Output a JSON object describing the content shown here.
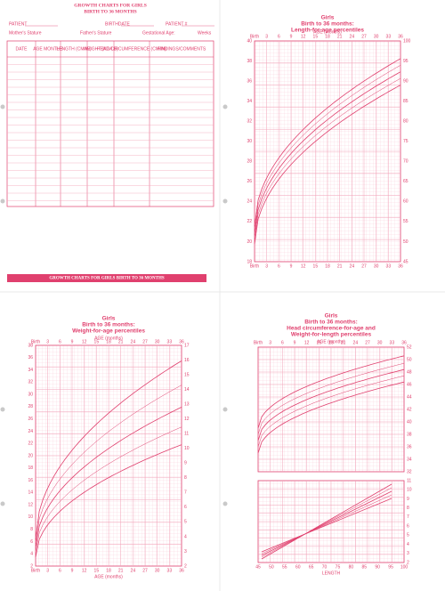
{
  "form": {
    "title": [
      "GROWTH CHARTS FOR GIRLS",
      "BIRTH TO 36 MONTHS"
    ],
    "fields_1": [
      "PATIENT",
      "BIRTHDATE",
      "PATIENT #"
    ],
    "fields_2": [
      "Mother's Stature",
      "Father's Stature",
      "Gestational Age:",
      "Weeks"
    ],
    "headers": [
      "DATE",
      "AGE MONTHS",
      "LENGTH (CM/IN)",
      "WEIGHT (KG/LB)",
      "HEAD CIRCUMFERENCE (CM/IN)",
      "FINDINGS/COMMENTS"
    ],
    "footer": "GROWTH CHARTS FOR GIRLS BIRTH TO 36 MONTHS"
  },
  "length_chart": {
    "title": [
      "Girls",
      "Birth to 36 months:",
      "Length-for-age percentiles"
    ],
    "x_label": "AGE (months)",
    "x_ticks": [
      "Birth",
      3,
      6,
      9,
      12,
      15,
      18,
      21,
      24,
      27,
      30,
      33,
      36
    ],
    "y_left": [
      40,
      38,
      36,
      34,
      32,
      30,
      28,
      26,
      24,
      22,
      20,
      18
    ],
    "y_right": [
      100,
      95,
      90,
      85,
      80,
      75,
      70,
      65,
      60,
      55,
      50,
      45
    ]
  },
  "weight_chart": {
    "title": [
      "Girls",
      "Birth to 36 months:",
      "Weight-for-age percentiles"
    ],
    "x_label": "AGE (months)",
    "x_ticks": [
      "Birth",
      3,
      6,
      9,
      12,
      15,
      18,
      21,
      24,
      27,
      30,
      33,
      36
    ],
    "y_left": [
      38,
      36,
      34,
      32,
      30,
      28,
      26,
      24,
      22,
      20,
      18,
      16,
      14,
      12,
      10,
      8,
      6,
      4,
      2
    ],
    "y_right": [
      17,
      16,
      15,
      14,
      13,
      12,
      11,
      10,
      9,
      8,
      7,
      6,
      5,
      4,
      3,
      2
    ]
  },
  "head_chart": {
    "title": [
      "Girls",
      "Birth to 36 months:",
      "Head circumference-for-age and",
      "Weight-for-length percentiles"
    ],
    "x_label": "AGE (months)",
    "x_ticks": [
      "Birth",
      3,
      6,
      9,
      12,
      15,
      18,
      21,
      24,
      27,
      30,
      33,
      36
    ],
    "y_right": [
      52,
      50,
      48,
      46,
      44,
      42,
      40,
      38,
      36,
      34,
      32
    ],
    "lower_y_right": [
      11,
      10,
      9,
      8,
      7,
      6,
      5,
      4,
      3,
      2
    ],
    "lower_x_label": "LENGTH",
    "lower_x_ticks": [
      45,
      50,
      55,
      60,
      65,
      70,
      75,
      80,
      85,
      90,
      95,
      100
    ]
  }
}
